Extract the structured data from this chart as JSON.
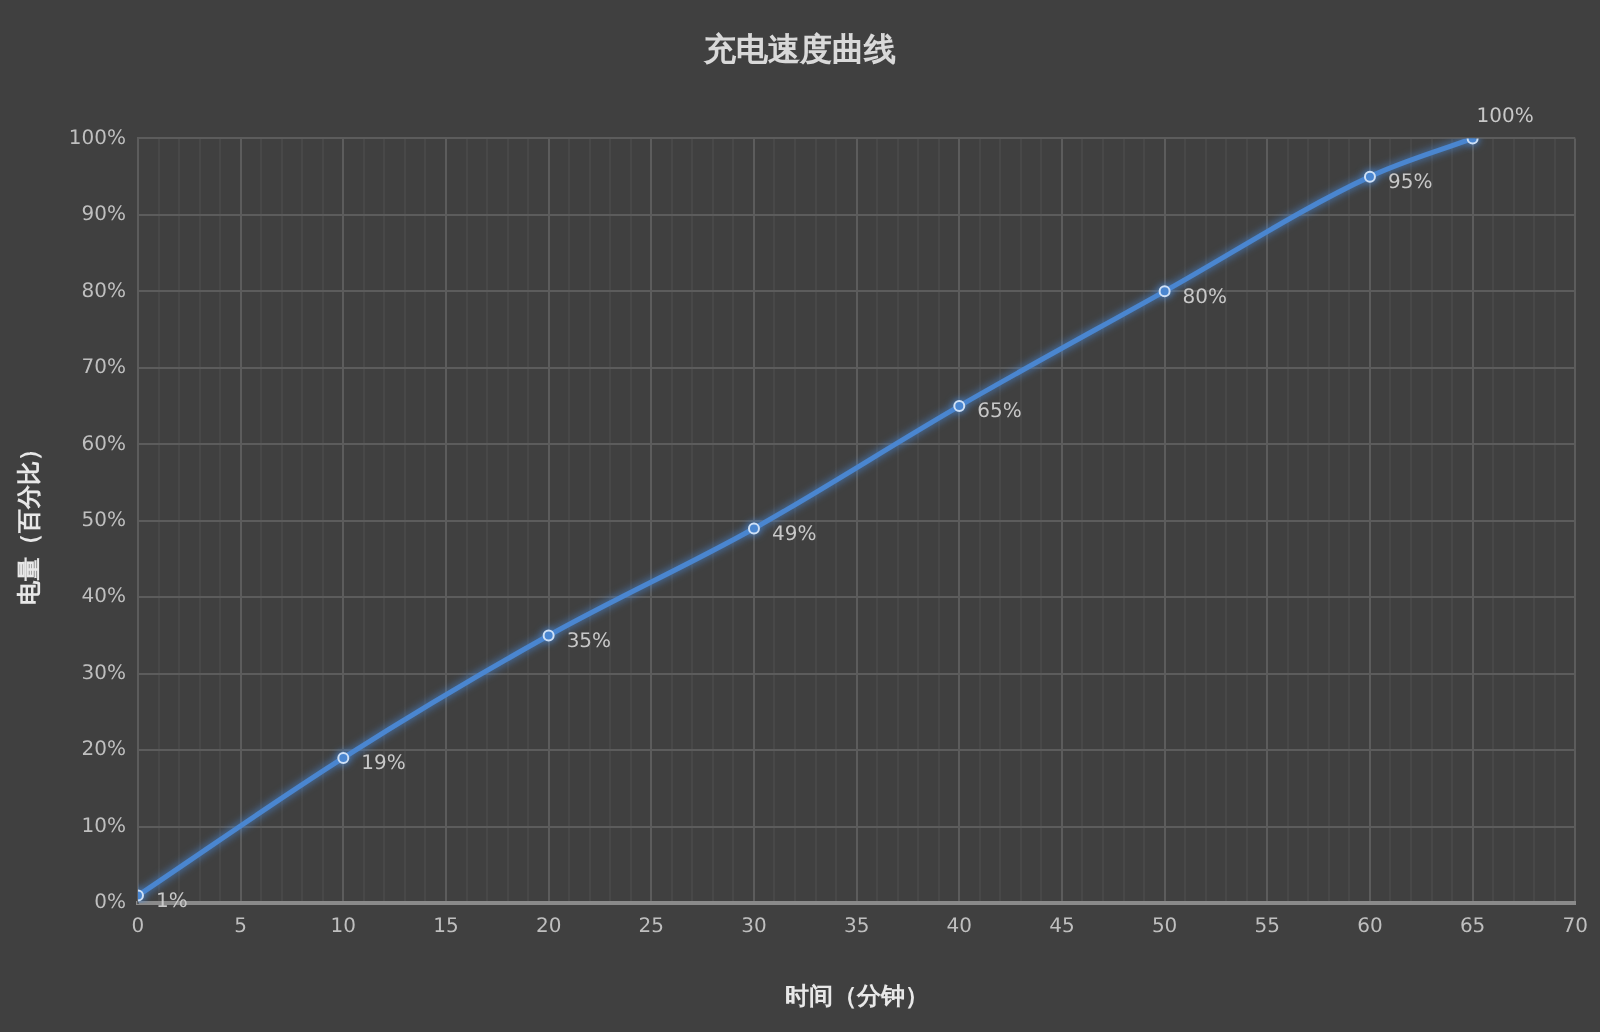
{
  "chart_data": {
    "type": "line",
    "title": "充电速度曲线",
    "xlabel": "时间（分钟）",
    "ylabel": "电量（百分比）",
    "x": [
      0,
      10,
      20,
      30,
      40,
      50,
      60,
      65
    ],
    "series": [
      {
        "color": "#4a86d0",
        "values": [
          1,
          19,
          35,
          49,
          65,
          80,
          95,
          100
        ],
        "value_labels": [
          "1%",
          "19%",
          "35%",
          "49%",
          "65%",
          "80%",
          "95%",
          "100%"
        ]
      }
    ],
    "xlim": [
      0,
      70
    ],
    "xticks": [
      0,
      {
        "value": 1,
        "label": null
      },
      {
        "value": 2,
        "label": null
      },
      {
        "value": 3,
        "label": null
      },
      {
        "value": 4,
        "label": null
      },
      5,
      {
        "value": 6,
        "label": null
      },
      {
        "value": 7,
        "label": null
      },
      {
        "value": 8,
        "label": null
      },
      {
        "value": 9,
        "label": null
      },
      10,
      {
        "value": 11,
        "label": null
      },
      {
        "value": 12,
        "label": null
      },
      {
        "value": 13,
        "label": null
      },
      {
        "value": 14,
        "label": null
      },
      15,
      {
        "value": 16,
        "label": null
      },
      {
        "value": 17,
        "label": null
      },
      {
        "value": 18,
        "label": null
      },
      {
        "value": 19,
        "label": null
      },
      20,
      {
        "value": 21,
        "label": null
      },
      {
        "value": 22,
        "label": null
      },
      {
        "value": 23,
        "label": null
      },
      {
        "value": 24,
        "label": null
      },
      25,
      {
        "value": 26,
        "label": null
      },
      {
        "value": 27,
        "label": null
      },
      {
        "value": 28,
        "label": null
      },
      {
        "value": 29,
        "label": null
      },
      30,
      {
        "value": 31,
        "label": null
      },
      {
        "value": 32,
        "label": null
      },
      {
        "value": 33,
        "label": null
      },
      {
        "value": 34,
        "label": null
      },
      35,
      {
        "value": 36,
        "label": null
      },
      {
        "value": 37,
        "label": null
      },
      {
        "value": 38,
        "label": null
      },
      {
        "value": 39,
        "label": null
      },
      40,
      {
        "value": 41,
        "label": null
      },
      {
        "value": 42,
        "label": null
      },
      {
        "value": 43,
        "label": null
      },
      {
        "value": 44,
        "label": null
      },
      45,
      {
        "value": 46,
        "label": null
      },
      {
        "value": 47,
        "label": null
      },
      {
        "value": 48,
        "label": null
      },
      {
        "value": 49,
        "label": null
      },
      50,
      {
        "value": 51,
        "label": null
      },
      {
        "value": 52,
        "label": null
      },
      {
        "value": 53,
        "label": null
      },
      {
        "value": 54,
        "label": null
      },
      55,
      {
        "value": 56,
        "label": null
      },
      {
        "value": 57,
        "label": null
      },
      {
        "value": 58,
        "label": null
      },
      {
        "value": 59,
        "label": null
      },
      60,
      {
        "value": 61,
        "label": null
      },
      {
        "value": 62,
        "label": null
      },
      {
        "value": 63,
        "label": null
      },
      {
        "value": 64,
        "label": null
      },
      65,
      {
        "value": 66,
        "label": null
      },
      {
        "value": 67,
        "label": null
      },
      {
        "value": 68,
        "label": null
      },
      {
        "value": 69,
        "label": null
      },
      70
    ],
    "ylim": [
      0,
      100
    ],
    "yticks": [
      {
        "value": 0,
        "label": "0%"
      },
      {
        "value": 10,
        "label": "10%"
      },
      {
        "value": 20,
        "label": "20%"
      },
      {
        "value": 30,
        "label": "30%"
      },
      {
        "value": 40,
        "label": "40%"
      },
      {
        "value": 50,
        "label": "50%"
      },
      {
        "value": 60,
        "label": "60%"
      },
      {
        "value": 70,
        "label": "70%"
      },
      {
        "value": 80,
        "label": "80%"
      },
      {
        "value": 90,
        "label": "90%"
      },
      {
        "value": 100,
        "label": "100%"
      }
    ],
    "grid": true,
    "marker": "circle",
    "line_style": "solid"
  }
}
